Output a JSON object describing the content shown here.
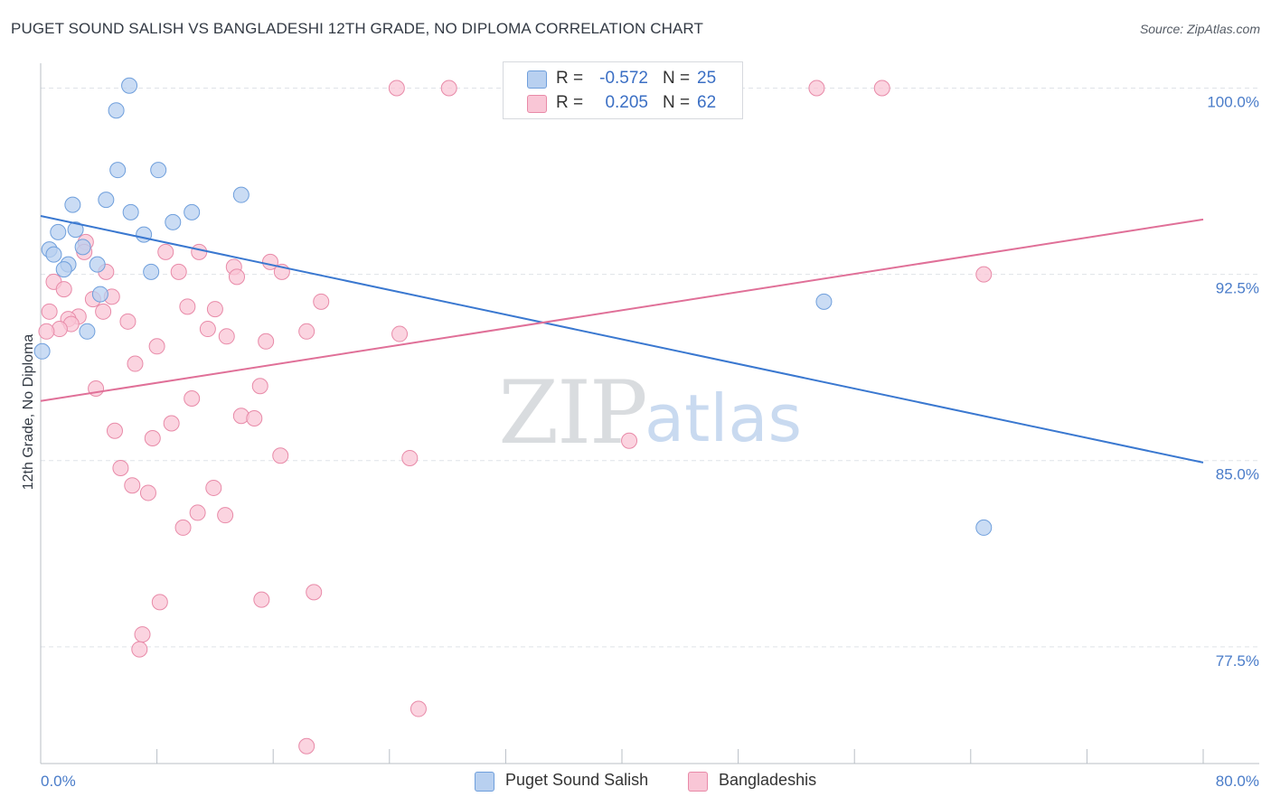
{
  "title": "PUGET SOUND SALISH VS BANGLADESHI 12TH GRADE, NO DIPLOMA CORRELATION CHART",
  "source": "Source: ZipAtlas.com",
  "watermark": {
    "zip": "ZIP",
    "atlas": "atlas"
  },
  "legend_top": {
    "rows": [
      {
        "r_label": "R =",
        "r_value": "-0.572",
        "n_label": "N =",
        "n_value": "25"
      },
      {
        "r_label": "R =",
        "r_value": "0.205",
        "n_label": "N =",
        "n_value": "62"
      }
    ]
  },
  "legend_bottom": {
    "items": [
      {
        "label": "Puget Sound Salish"
      },
      {
        "label": "Bangladeshis"
      }
    ]
  },
  "colors": {
    "blue_fill": "#b8d0f0",
    "blue_stroke": "#6f9fdc",
    "blue_line": "#3a78d0",
    "pink_fill": "#f9c6d6",
    "pink_stroke": "#e88aa8",
    "pink_line": "#e07098",
    "grid": "#dfe3e8",
    "tick_label": "#4a7cc9"
  },
  "chart_data": {
    "type": "scatter",
    "title": "PUGET SOUND SALISH VS BANGLADESHI 12TH GRADE, NO DIPLOMA CORRELATION CHART",
    "xlabel": "",
    "ylabel": "12th Grade, No Diploma",
    "xlim": [
      0,
      80
    ],
    "ylim": [
      72.8,
      101.0
    ],
    "x_tick_labels": [
      "0.0%",
      "80.0%"
    ],
    "y_ticks": [
      77.5,
      85.0,
      92.5,
      100.0
    ],
    "y_tick_labels": [
      "77.5%",
      "85.0%",
      "92.5%",
      "100.0%"
    ],
    "grid": true,
    "legend": "top-center",
    "series": [
      {
        "name": "Puget Sound Salish",
        "color": "#b8d0f0",
        "points": [
          [
            6.1,
            100.1
          ],
          [
            5.2,
            99.1
          ],
          [
            5.3,
            96.7
          ],
          [
            8.1,
            96.7
          ],
          [
            13.8,
            95.7
          ],
          [
            4.5,
            95.5
          ],
          [
            2.2,
            95.3
          ],
          [
            6.2,
            95.0
          ],
          [
            10.4,
            95.0
          ],
          [
            9.1,
            94.6
          ],
          [
            2.4,
            94.3
          ],
          [
            1.2,
            94.2
          ],
          [
            7.1,
            94.1
          ],
          [
            2.9,
            93.6
          ],
          [
            0.6,
            93.5
          ],
          [
            0.9,
            93.3
          ],
          [
            1.9,
            92.9
          ],
          [
            3.9,
            92.9
          ],
          [
            1.6,
            92.7
          ],
          [
            7.6,
            92.6
          ],
          [
            4.1,
            91.7
          ],
          [
            3.2,
            90.2
          ],
          [
            0.1,
            89.4
          ],
          [
            53.9,
            91.4
          ],
          [
            64.9,
            82.3
          ]
        ]
      },
      {
        "name": "Bangladeshis",
        "color": "#f9c6d6",
        "points": [
          [
            24.5,
            100.0
          ],
          [
            28.1,
            100.0
          ],
          [
            53.4,
            100.0
          ],
          [
            57.9,
            100.0
          ],
          [
            3.1,
            93.8
          ],
          [
            3.0,
            93.4
          ],
          [
            8.6,
            93.4
          ],
          [
            10.9,
            93.4
          ],
          [
            15.8,
            93.0
          ],
          [
            13.3,
            92.8
          ],
          [
            4.5,
            92.6
          ],
          [
            9.5,
            92.6
          ],
          [
            16.6,
            92.6
          ],
          [
            13.5,
            92.4
          ],
          [
            64.9,
            92.5
          ],
          [
            0.9,
            92.2
          ],
          [
            1.6,
            91.9
          ],
          [
            3.6,
            91.5
          ],
          [
            4.9,
            91.6
          ],
          [
            19.3,
            91.4
          ],
          [
            10.1,
            91.2
          ],
          [
            12.0,
            91.1
          ],
          [
            0.6,
            91.0
          ],
          [
            4.3,
            91.0
          ],
          [
            2.6,
            90.8
          ],
          [
            1.9,
            90.7
          ],
          [
            2.1,
            90.5
          ],
          [
            6.0,
            90.6
          ],
          [
            1.3,
            90.3
          ],
          [
            11.5,
            90.3
          ],
          [
            18.3,
            90.2
          ],
          [
            24.7,
            90.1
          ],
          [
            12.8,
            90.0
          ],
          [
            0.4,
            90.2
          ],
          [
            15.5,
            89.8
          ],
          [
            8.0,
            89.6
          ],
          [
            6.5,
            88.9
          ],
          [
            15.1,
            88.0
          ],
          [
            3.8,
            87.9
          ],
          [
            10.4,
            87.5
          ],
          [
            9.0,
            86.5
          ],
          [
            13.8,
            86.8
          ],
          [
            14.7,
            86.7
          ],
          [
            5.1,
            86.2
          ],
          [
            7.7,
            85.9
          ],
          [
            40.5,
            85.8
          ],
          [
            16.5,
            85.2
          ],
          [
            25.4,
            85.1
          ],
          [
            5.5,
            84.7
          ],
          [
            6.3,
            84.0
          ],
          [
            11.9,
            83.9
          ],
          [
            7.4,
            83.7
          ],
          [
            10.8,
            82.9
          ],
          [
            12.7,
            82.8
          ],
          [
            9.8,
            82.3
          ],
          [
            18.8,
            79.7
          ],
          [
            15.2,
            79.4
          ],
          [
            8.2,
            79.3
          ],
          [
            7.0,
            78.0
          ],
          [
            6.8,
            77.4
          ],
          [
            26.0,
            75.0
          ],
          [
            18.3,
            73.5
          ]
        ]
      }
    ],
    "trendlines": [
      {
        "series": "Puget Sound Salish",
        "x": [
          0,
          80
        ],
        "y": [
          94.85,
          84.92
        ]
      },
      {
        "series": "Bangladeshis",
        "x": [
          0,
          80
        ],
        "y": [
          87.4,
          94.71
        ]
      }
    ]
  }
}
